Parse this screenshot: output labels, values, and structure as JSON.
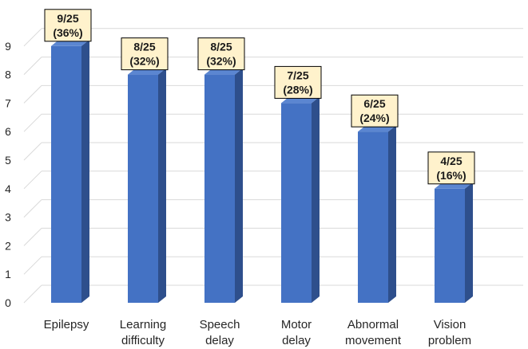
{
  "chart_data": {
    "type": "bar",
    "categories": [
      [
        "Epilepsy"
      ],
      [
        "Learning",
        "difficulty"
      ],
      [
        "Speech",
        "delay"
      ],
      [
        "Motor",
        "delay"
      ],
      [
        "Abnormal",
        "movement"
      ],
      [
        "Vision",
        "problem"
      ]
    ],
    "values": [
      9,
      8,
      8,
      7,
      6,
      4
    ],
    "data_labels": [
      [
        "9/25",
        "(36%)"
      ],
      [
        "8/25",
        "(32%)"
      ],
      [
        "8/25",
        "(32%)"
      ],
      [
        "7/25",
        "(28%)"
      ],
      [
        "6/25",
        "(24%)"
      ],
      [
        "4/25",
        "(16%)"
      ]
    ],
    "ylim": [
      0,
      9
    ],
    "yticks": [
      0,
      1,
      2,
      3,
      4,
      5,
      6,
      7,
      8,
      9
    ],
    "grid": true,
    "title": "",
    "xlabel": "",
    "ylabel": "",
    "colors": {
      "bar_front": "#4472C4",
      "bar_side": "#2E4F8C",
      "bar_top": "#5B86D1",
      "label_bg": "#FFF2CC",
      "label_border": "#000000",
      "grid": "#D9D9D9"
    }
  }
}
